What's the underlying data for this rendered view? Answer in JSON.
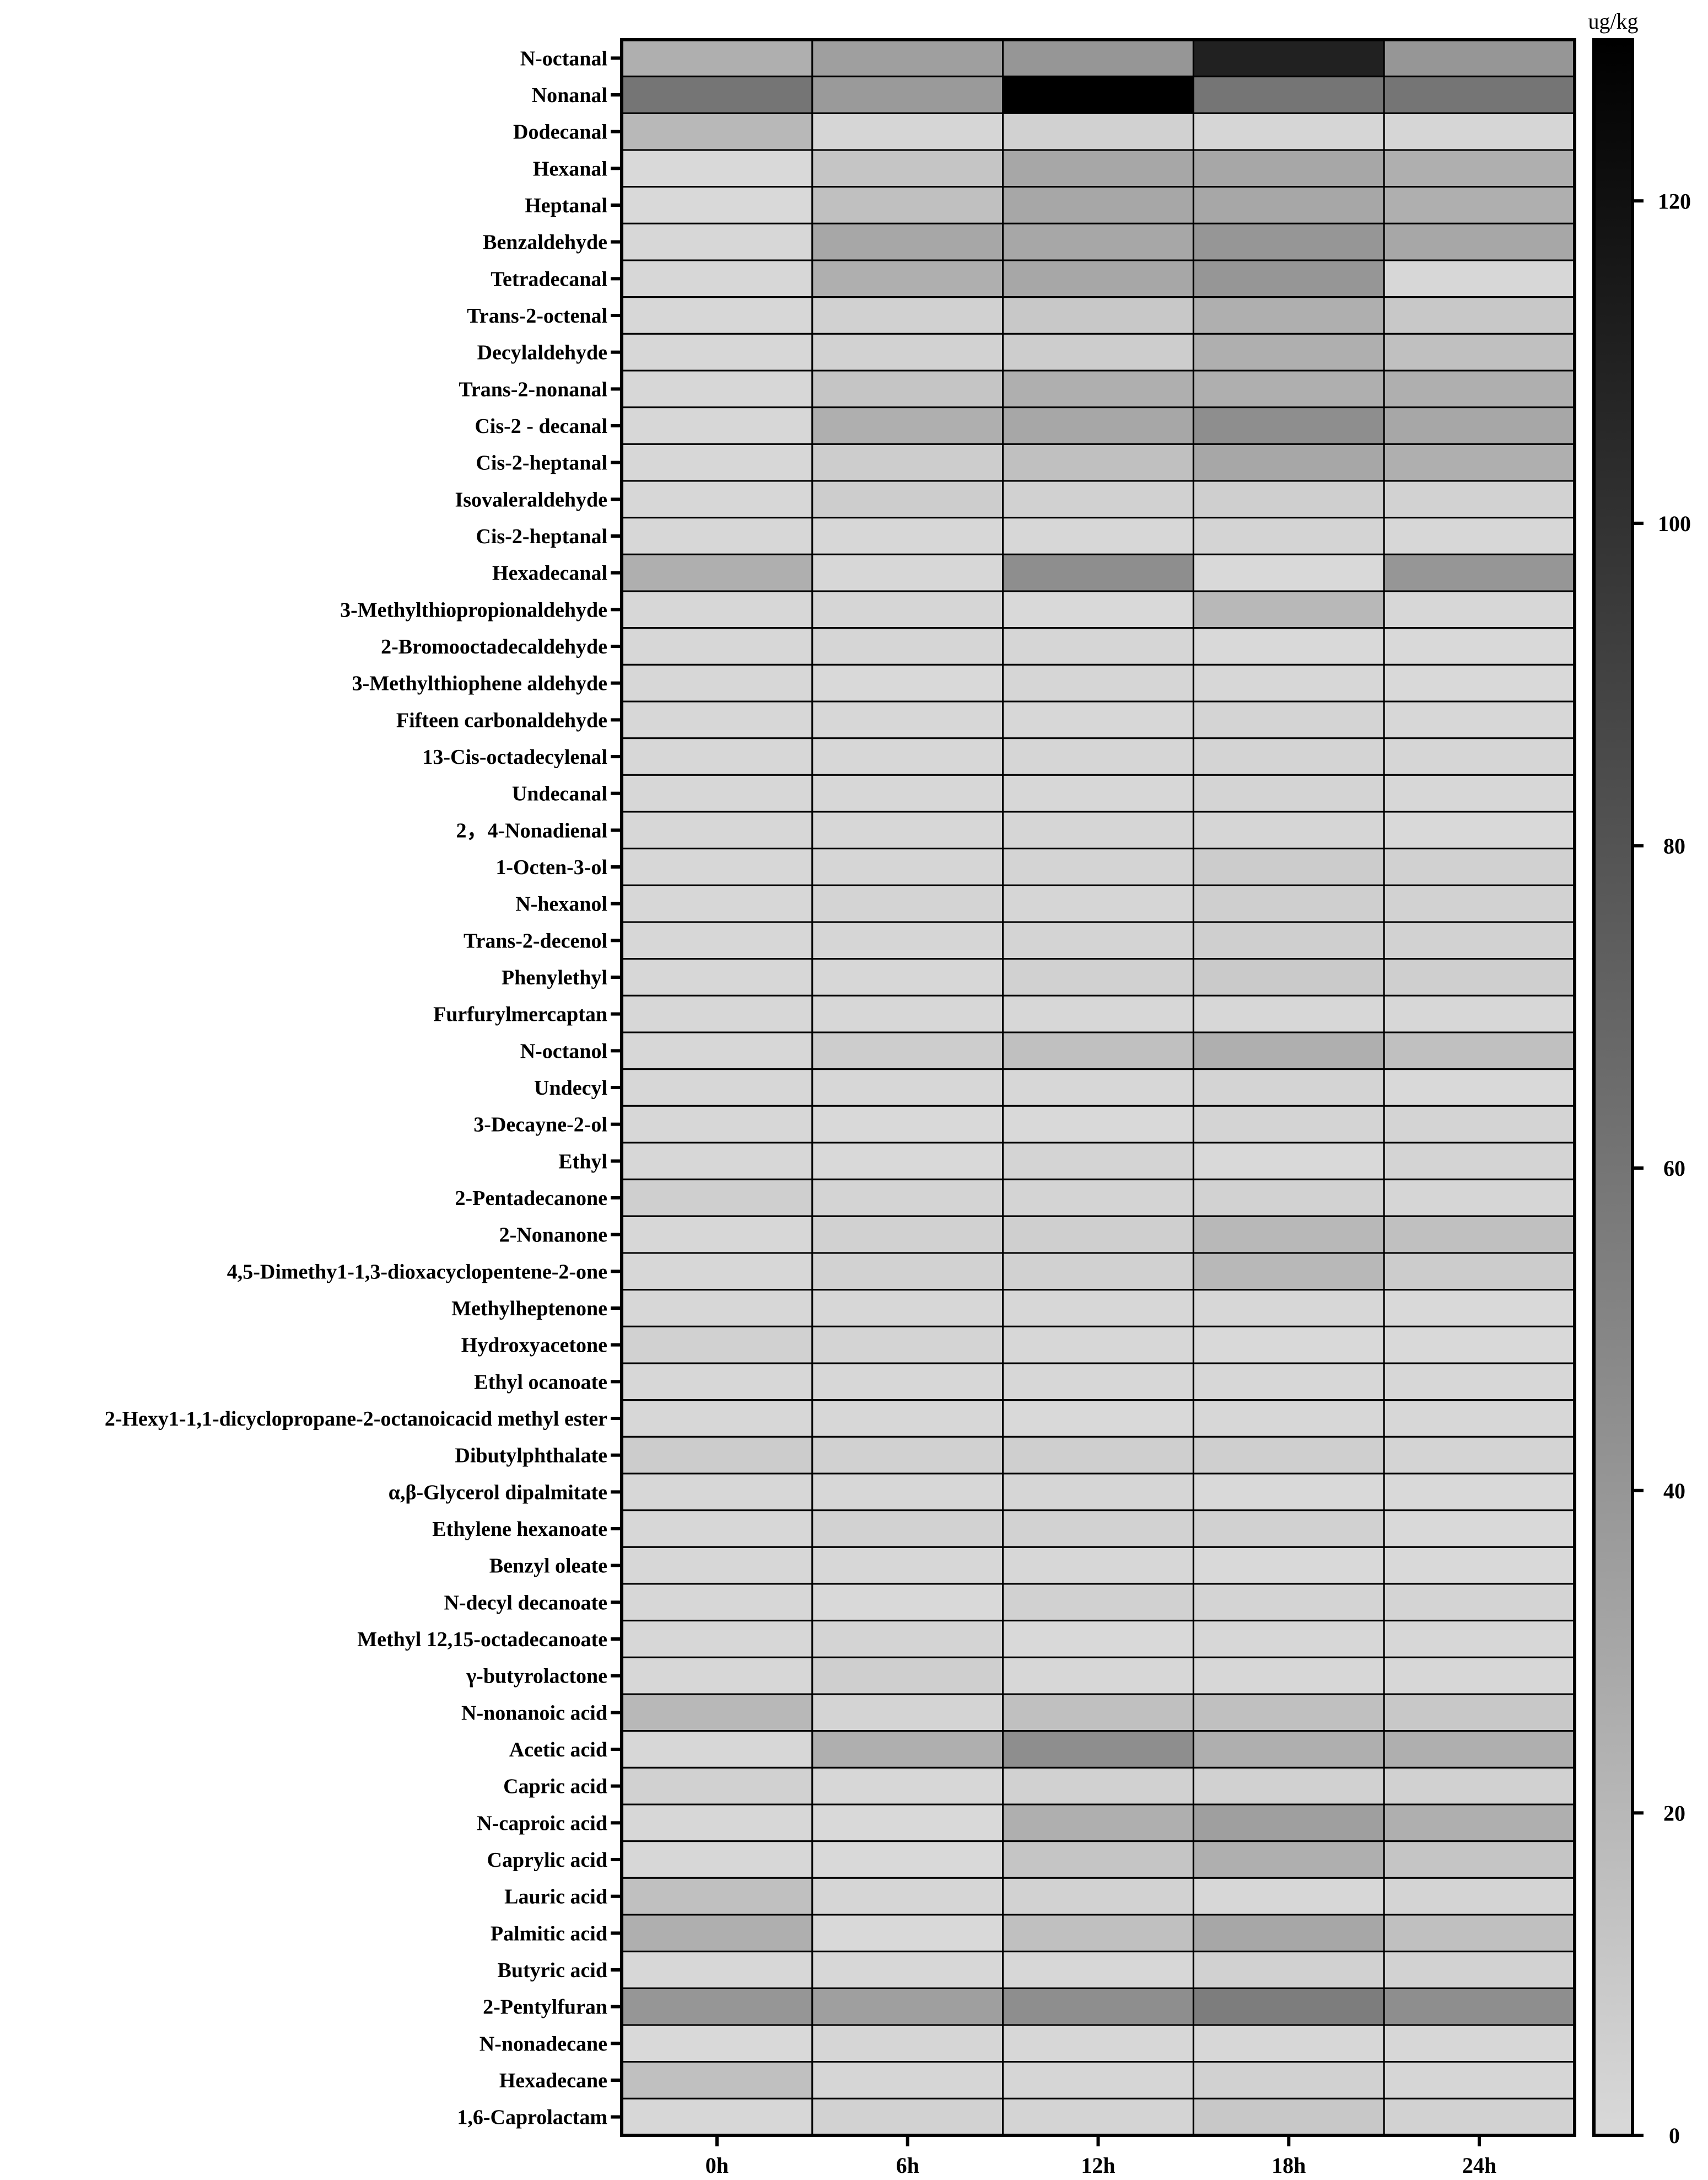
{
  "chart_data": {
    "type": "heatmap",
    "title": "",
    "xlabel": "",
    "ylabel": "",
    "x": [
      "0h",
      "6h",
      "12h",
      "18h",
      "24h"
    ],
    "y": [
      "N-octanal",
      "Nonanal",
      "Dodecanal",
      "Hexanal",
      "Heptanal",
      "Benzaldehyde",
      "Tetradecanal",
      "Trans-2-octenal",
      "Decylaldehyde",
      "Trans-2-nonanal",
      "Cis-2 - decanal",
      "Cis-2-heptanal",
      "Isovaleraldehyde",
      "Cis-2-heptanal",
      "Hexadecanal",
      "3-Methylthiopropionaldehyde",
      "2-Bromooctadecaldehyde",
      "3-Methylthiophene aldehyde",
      "Fifteen carbonaldehyde",
      "13-Cis-octadecylenal",
      "Undecanal",
      "2，4-Nonadienal",
      "1-Octen-3-ol",
      "N-hexanol",
      "Trans-2-decenol",
      "Phenylethyl",
      "Furfurylmercaptan",
      "N-octanol",
      "Undecyl",
      "3-Decayne-2-ol",
      "Ethyl",
      "2-Pentadecanone",
      "2-Nonanone",
      "4,5-Dimethy1-1,3-dioxacyclopentene-2-one",
      "Methylheptenone",
      "Hydroxyacetone",
      "Ethyl ocanoate",
      "2-Hexy1-1,1-dicyclopropane-2-octanoicacid methyl ester",
      "Dibutylphthalate",
      "α,β-Glycerol dipalmitate",
      "Ethylene hexanoate",
      "Benzyl oleate",
      "N-decyl decanoate",
      "Methyl 12,15-octadecanoate",
      "γ-butyrolactone",
      "N-nonanoic acid",
      "Acetic acid",
      "Capric acid",
      "N-caproic acid",
      "Caprylic acid",
      "Lauric acid",
      "Palmitic acid",
      "Butyric acid",
      "2-Pentylfuran",
      "N-nonadecane",
      "Hexadecane",
      "1,6-Caprolactam"
    ],
    "values": [
      [
        25,
        35,
        40,
        110,
        40
      ],
      [
        60,
        38,
        130,
        60,
        60
      ],
      [
        20,
        2,
        5,
        2,
        2
      ],
      [
        0,
        12,
        30,
        30,
        25
      ],
      [
        0,
        15,
        30,
        30,
        25
      ],
      [
        1,
        30,
        30,
        40,
        30
      ],
      [
        1,
        25,
        30,
        40,
        1
      ],
      [
        1,
        5,
        10,
        25,
        10
      ],
      [
        1,
        4,
        7,
        25,
        15
      ],
      [
        1,
        12,
        25,
        25,
        25
      ],
      [
        1,
        25,
        30,
        45,
        30
      ],
      [
        1,
        7,
        15,
        30,
        25
      ],
      [
        1,
        7,
        5,
        6,
        4
      ],
      [
        1,
        1,
        1,
        3,
        1
      ],
      [
        25,
        1,
        45,
        0,
        40
      ],
      [
        1,
        2,
        0,
        20,
        1
      ],
      [
        1,
        2,
        2,
        0,
        0
      ],
      [
        1,
        0,
        2,
        1,
        0
      ],
      [
        1,
        1,
        1,
        3,
        1
      ],
      [
        1,
        1,
        2,
        3,
        2
      ],
      [
        1,
        1,
        1,
        3,
        1
      ],
      [
        1,
        1,
        2,
        2,
        0
      ],
      [
        1,
        2,
        3,
        8,
        5
      ],
      [
        1,
        3,
        2,
        6,
        4
      ],
      [
        1,
        2,
        3,
        6,
        4
      ],
      [
        1,
        1,
        5,
        9,
        6
      ],
      [
        1,
        1,
        1,
        1,
        1
      ],
      [
        1,
        7,
        15,
        25,
        15
      ],
      [
        1,
        1,
        1,
        3,
        0
      ],
      [
        1,
        0,
        0,
        3,
        3
      ],
      [
        1,
        0,
        3,
        0,
        3
      ],
      [
        6,
        3,
        3,
        4,
        2
      ],
      [
        1,
        5,
        6,
        20,
        15
      ],
      [
        1,
        4,
        5,
        20,
        8
      ],
      [
        1,
        1,
        1,
        1,
        0
      ],
      [
        5,
        3,
        1,
        0,
        0
      ],
      [
        1,
        1,
        1,
        1,
        1
      ],
      [
        1,
        1,
        0,
        1,
        1
      ],
      [
        8,
        5,
        6,
        6,
        3
      ],
      [
        1,
        1,
        2,
        0,
        0
      ],
      [
        1,
        4,
        4,
        5,
        0
      ],
      [
        1,
        1,
        1,
        0,
        0
      ],
      [
        1,
        0,
        5,
        3,
        3
      ],
      [
        1,
        3,
        0,
        1,
        1
      ],
      [
        1,
        6,
        1,
        1,
        1
      ],
      [
        20,
        3,
        15,
        15,
        10
      ],
      [
        1,
        25,
        45,
        25,
        25
      ],
      [
        5,
        1,
        5,
        5,
        5
      ],
      [
        1,
        0,
        25,
        35,
        25
      ],
      [
        1,
        0,
        12,
        25,
        12
      ],
      [
        15,
        2,
        4,
        1,
        3
      ],
      [
        25,
        0,
        15,
        30,
        15
      ],
      [
        1,
        1,
        1,
        5,
        4
      ],
      [
        40,
        35,
        45,
        55,
        45
      ],
      [
        0,
        2,
        1,
        1,
        1
      ],
      [
        15,
        2,
        2,
        5,
        2
      ],
      [
        1,
        4,
        3,
        10,
        4
      ]
    ],
    "colorbar": {
      "label": "ug/kg",
      "range": [
        0,
        130
      ],
      "ticks": [
        0,
        20,
        40,
        60,
        80,
        100,
        120
      ],
      "low_color": "#d9d9d9",
      "high_color": "#000000"
    }
  }
}
